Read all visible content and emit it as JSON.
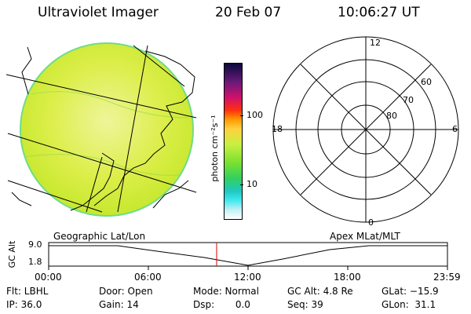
{
  "header": {
    "instrument": "Ultraviolet Imager",
    "date": "20 Feb 07",
    "time": "10:06:27 UT"
  },
  "colorbar": {
    "unit_label": "photon cm⁻²s⁻¹",
    "tick_100": "100",
    "tick_10": "10"
  },
  "image_panel": {
    "caption": "Geographic Lat/Lon"
  },
  "polar_panel": {
    "caption": "Apex MLat/MLT",
    "mlt_12": "12",
    "mlt_18": "18",
    "mlt_6": "6",
    "mlt_0": "0",
    "lat_60": "60",
    "lat_70": "70",
    "lat_80": "80"
  },
  "altitude_plot": {
    "ylabel": "GC Alt",
    "y_top": "9.0",
    "y_bottom": "1.8",
    "x_ticks": [
      "00:00",
      "06:00",
      "12:00",
      "18:00",
      "23:59"
    ],
    "marker_time_hours": 10.108,
    "colors": {
      "marker": "#dd0000",
      "curve": "#000000"
    }
  },
  "status": {
    "filter": "Flt: LBHL",
    "ip": "IP: 36.0",
    "door": "Door: Open",
    "gain": "Gain: 14",
    "mode": "Mode: Normal",
    "dsp": "Dsp:       0.0",
    "gc_alt": "GC Alt: 4.8 Re",
    "seq": "Seq: 39",
    "glat": "GLat: −15.9",
    "glon": "GLon:  31.1"
  },
  "colors": {
    "image_fill": "#d8ee3a",
    "image_edge": "#66d98a"
  }
}
